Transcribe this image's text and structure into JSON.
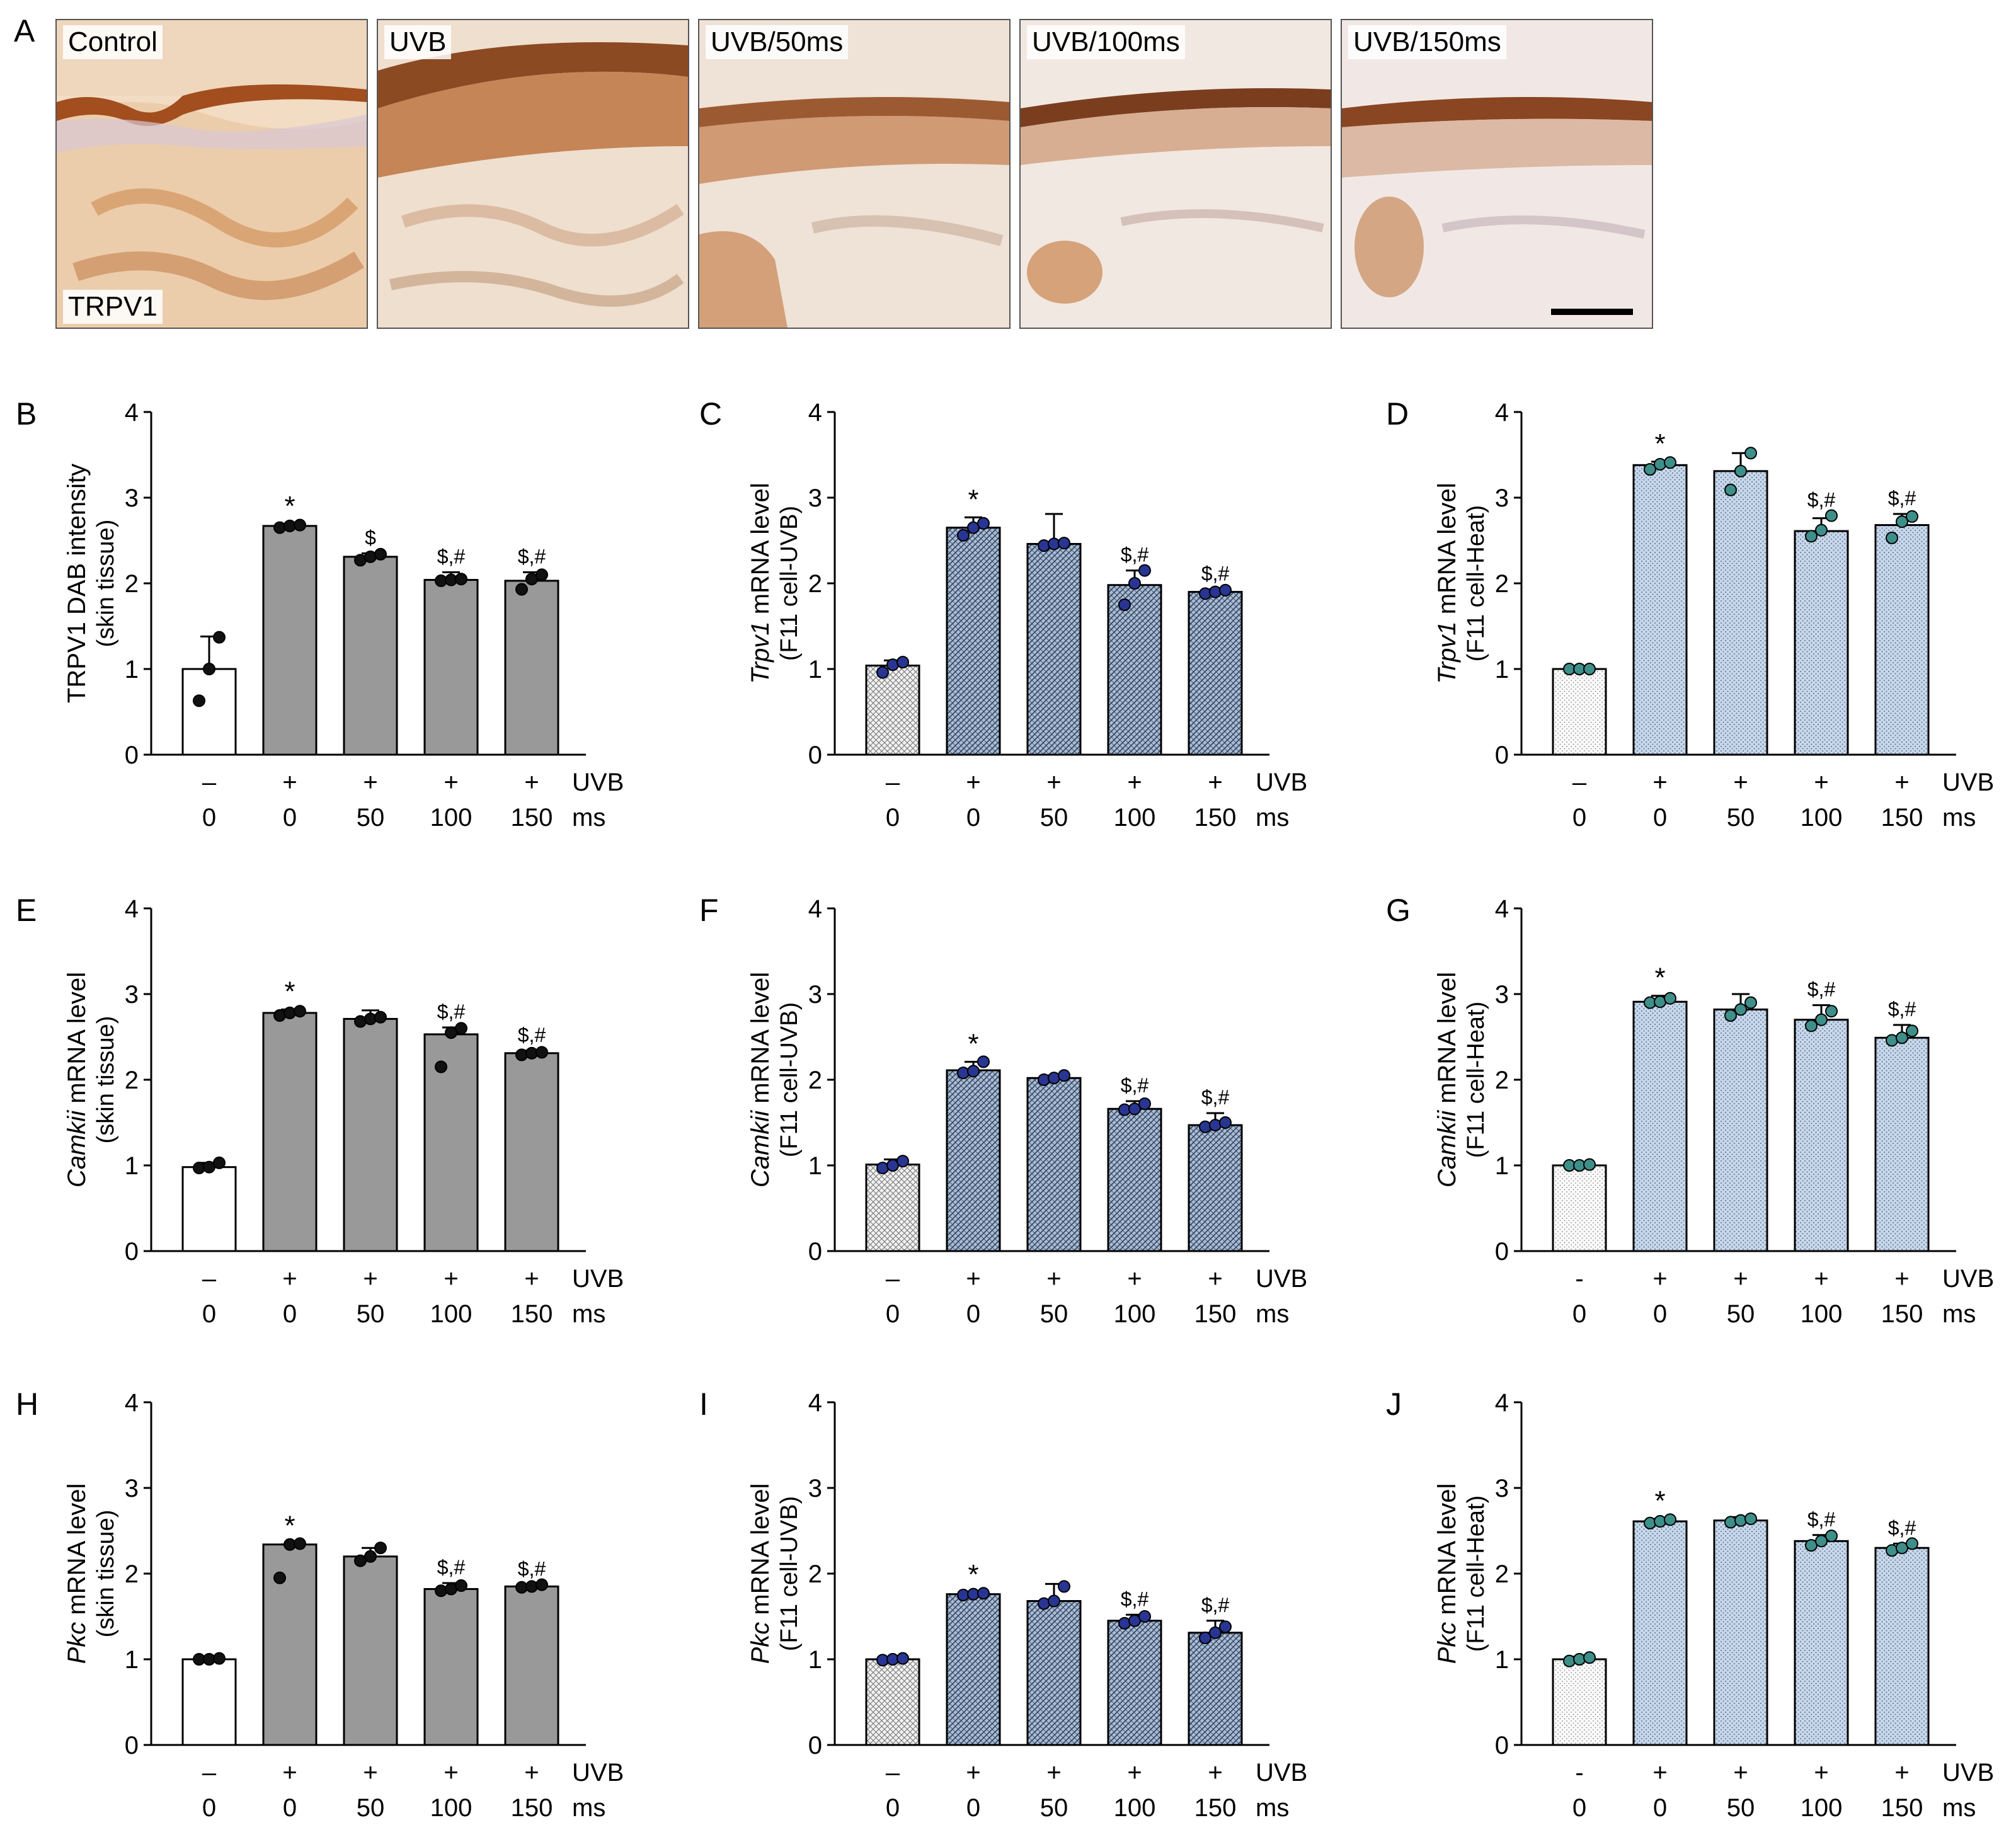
{
  "panel_a": {
    "letter": "A",
    "images": [
      {
        "label": "Control",
        "stain": "TRPV1"
      },
      {
        "label": "UVB"
      },
      {
        "label": "UVB/50ms"
      },
      {
        "label": "UVB/100ms"
      },
      {
        "label": "UVB/150ms"
      }
    ]
  },
  "colors": {
    "skin_fill": "#999999",
    "control_fill": "#ffffff",
    "uvb_fill": "#a9bdd6",
    "uvb_hatch": "#2f3f58",
    "heat_fill": "#c7d8ec",
    "heat_dots": "#6f7f95",
    "uvb_point": "#283593",
    "heat_point": "#3e8f8a",
    "skin_point": "#111111"
  },
  "chart_data": [
    {
      "panel": "B",
      "type": "bar",
      "ylabel": "TRPV1 DAB intensity",
      "ylabel_italic": "",
      "ylabel_rest": "",
      "sublabel": "(skin tissue)",
      "style": "skin",
      "ylim": [
        0,
        4
      ],
      "yticks": [
        "0",
        "1",
        "2",
        "3",
        "4"
      ],
      "uvb_row": [
        "–",
        "+",
        "+",
        "+",
        "+"
      ],
      "ms_row": [
        "0",
        "0",
        "50",
        "100",
        "150"
      ],
      "row1_label": "UVB",
      "row2_label": "ms",
      "values": [
        1.0,
        2.67,
        2.31,
        2.04,
        2.03
      ],
      "errors": [
        0.38,
        0.02,
        0.04,
        0.09,
        0.1
      ],
      "points": [
        [
          0.63,
          1.0,
          1.37
        ],
        [
          2.65,
          2.67,
          2.68
        ],
        [
          2.27,
          2.31,
          2.34
        ],
        [
          2.03,
          2.04,
          2.05
        ],
        [
          1.93,
          2.05,
          2.1
        ]
      ],
      "annotations": [
        "",
        "*",
        "$",
        "$,#",
        "$,#"
      ]
    },
    {
      "panel": "C",
      "type": "bar",
      "ylabel": "",
      "ylabel_italic": "Trpv1",
      "ylabel_rest": " mRNA level",
      "sublabel": "(F11 cell-UVB)",
      "style": "uvb",
      "ylim": [
        0,
        4
      ],
      "yticks": [
        "0",
        "1",
        "2",
        "3",
        "4"
      ],
      "uvb_row": [
        "–",
        "+",
        "+",
        "+",
        "+"
      ],
      "ms_row": [
        "0",
        "0",
        "50",
        "100",
        "150"
      ],
      "row1_label": "UVB",
      "row2_label": "ms",
      "values": [
        1.04,
        2.65,
        2.46,
        1.98,
        1.9
      ],
      "errors": [
        0.06,
        0.12,
        0.35,
        0.17,
        0.03
      ],
      "points": [
        [
          0.96,
          1.05,
          1.08
        ],
        [
          2.56,
          2.65,
          2.7
        ],
        [
          2.44,
          2.46,
          2.47
        ],
        [
          1.75,
          2.0,
          2.15
        ],
        [
          1.88,
          1.9,
          1.92
        ]
      ],
      "annotations": [
        "",
        "*",
        "",
        "$,#",
        "$,#"
      ]
    },
    {
      "panel": "D",
      "type": "bar",
      "ylabel": "",
      "ylabel_italic": "Trpv1",
      "ylabel_rest": " mRNA level",
      "sublabel": "(F11 cell-Heat)",
      "style": "heat",
      "ylim": [
        0,
        4
      ],
      "yticks": [
        "0",
        "1",
        "2",
        "3",
        "4"
      ],
      "uvb_row": [
        "–",
        "+",
        "+",
        "+",
        "+"
      ],
      "ms_row": [
        "0",
        "0",
        "50",
        "100",
        "150"
      ],
      "row1_label": "UVB",
      "row2_label": "ms",
      "values": [
        1.0,
        3.38,
        3.31,
        2.61,
        2.68
      ],
      "errors": [
        0.01,
        0.04,
        0.21,
        0.15,
        0.13
      ],
      "points": [
        [
          1.0,
          1.0,
          1.0
        ],
        [
          3.33,
          3.39,
          3.41
        ],
        [
          3.09,
          3.31,
          3.52
        ],
        [
          2.55,
          2.62,
          2.79
        ],
        [
          2.53,
          2.72,
          2.78
        ]
      ],
      "annotations": [
        "",
        "*",
        "",
        "$,#",
        "$,#"
      ]
    },
    {
      "panel": "E",
      "type": "bar",
      "ylabel": "",
      "ylabel_italic": "Camkii",
      "ylabel_rest": " mRNA level",
      "sublabel": "(skin tissue)",
      "style": "skin",
      "ylim": [
        0,
        4
      ],
      "yticks": [
        "0",
        "1",
        "2",
        "3",
        "4"
      ],
      "uvb_row": [
        "–",
        "+",
        "+",
        "+",
        "+"
      ],
      "ms_row": [
        "0",
        "0",
        "50",
        "100",
        "150"
      ],
      "row1_label": "UVB",
      "row2_label": "ms",
      "values": [
        0.98,
        2.78,
        2.71,
        2.53,
        2.31
      ],
      "errors": [
        0.05,
        0.04,
        0.1,
        0.08,
        0.03
      ],
      "points": [
        [
          0.97,
          0.98,
          1.03
        ],
        [
          2.75,
          2.78,
          2.8
        ],
        [
          2.68,
          2.71,
          2.73
        ],
        [
          2.15,
          2.55,
          2.6
        ],
        [
          2.29,
          2.31,
          2.32
        ]
      ],
      "annotations": [
        "",
        "*",
        "",
        "$,#",
        "$,#"
      ]
    },
    {
      "panel": "F",
      "type": "bar",
      "ylabel": "",
      "ylabel_italic": "Camkii",
      "ylabel_rest": " mRNA level",
      "sublabel": "(F11 cell-UVB)",
      "style": "uvb",
      "ylim": [
        0,
        4
      ],
      "yticks": [
        "0",
        "1",
        "2",
        "3",
        "4"
      ],
      "uvb_row": [
        "–",
        "+",
        "+",
        "+",
        "+"
      ],
      "ms_row": [
        "0",
        "0",
        "50",
        "100",
        "150"
      ],
      "row1_label": "UVB",
      "row2_label": "ms",
      "values": [
        1.01,
        2.11,
        2.02,
        1.66,
        1.47
      ],
      "errors": [
        0.06,
        0.1,
        0.03,
        0.09,
        0.14
      ],
      "points": [
        [
          0.97,
          1.0,
          1.05
        ],
        [
          2.08,
          2.1,
          2.21
        ],
        [
          2.0,
          2.02,
          2.05
        ],
        [
          1.65,
          1.66,
          1.72
        ],
        [
          1.45,
          1.47,
          1.5
        ]
      ],
      "annotations": [
        "",
        "*",
        "",
        "$,#",
        "$,#"
      ]
    },
    {
      "panel": "G",
      "type": "bar",
      "ylabel": "",
      "ylabel_italic": "Camkii",
      "ylabel_rest": " mRNA level",
      "sublabel": "(F11 cell-Heat)",
      "style": "heat",
      "ylim": [
        0,
        4
      ],
      "yticks": [
        "0",
        "1",
        "2",
        "3",
        "4"
      ],
      "uvb_row": [
        "-",
        "+",
        "+",
        "+",
        "+"
      ],
      "ms_row": [
        "0",
        "0",
        "50",
        "100",
        "150"
      ],
      "row1_label": "UVB",
      "row2_label": "ms",
      "values": [
        1.0,
        2.91,
        2.82,
        2.7,
        2.49
      ],
      "errors": [
        0.02,
        0.07,
        0.18,
        0.17,
        0.15
      ],
      "points": [
        [
          1.0,
          1.0,
          1.01
        ],
        [
          2.9,
          2.91,
          2.95
        ],
        [
          2.75,
          2.82,
          2.9
        ],
        [
          2.63,
          2.7,
          2.8
        ],
        [
          2.46,
          2.49,
          2.57
        ]
      ],
      "annotations": [
        "",
        "*",
        "",
        "$,#",
        "$,#"
      ]
    },
    {
      "panel": "H",
      "type": "bar",
      "ylabel": "",
      "ylabel_italic": "Pkc",
      "ylabel_rest": " mRNA level",
      "sublabel": "(skin tissue)",
      "style": "skin",
      "ylim": [
        0,
        4
      ],
      "yticks": [
        "0",
        "1",
        "2",
        "3",
        "4"
      ],
      "uvb_row": [
        "–",
        "+",
        "+",
        "+",
        "+"
      ],
      "ms_row": [
        "0",
        "0",
        "50",
        "100",
        "150"
      ],
      "row1_label": "UVB",
      "row2_label": "ms",
      "values": [
        1.0,
        2.34,
        2.2,
        1.82,
        1.85
      ],
      "errors": [
        0.01,
        0.0,
        0.1,
        0.07,
        0.02
      ],
      "points": [
        [
          1.0,
          1.0,
          1.01
        ],
        [
          1.95,
          2.34,
          2.35
        ],
        [
          2.15,
          2.2,
          2.3
        ],
        [
          1.8,
          1.82,
          1.86
        ],
        [
          1.84,
          1.85,
          1.87
        ]
      ],
      "annotations": [
        "",
        "*",
        "",
        "$,#",
        "$,#"
      ]
    },
    {
      "panel": "I",
      "type": "bar",
      "ylabel": "",
      "ylabel_italic": "Pkc",
      "ylabel_rest": " mRNA level",
      "sublabel": "(F11 cell-UVB)",
      "style": "uvb",
      "ylim": [
        0,
        4
      ],
      "yticks": [
        "0",
        "1",
        "2",
        "3",
        "4"
      ],
      "uvb_row": [
        "–",
        "+",
        "+",
        "+",
        "+"
      ],
      "ms_row": [
        "0",
        "0",
        "50",
        "100",
        "150"
      ],
      "row1_label": "UVB",
      "row2_label": "ms",
      "values": [
        1.0,
        1.76,
        1.68,
        1.45,
        1.31
      ],
      "errors": [
        0.02,
        0.02,
        0.2,
        0.07,
        0.14
      ],
      "points": [
        [
          0.99,
          1.0,
          1.01
        ],
        [
          1.75,
          1.76,
          1.77
        ],
        [
          1.65,
          1.68,
          1.85
        ],
        [
          1.42,
          1.45,
          1.5
        ],
        [
          1.25,
          1.31,
          1.38
        ]
      ],
      "annotations": [
        "",
        "*",
        "",
        "$,#",
        "$,#"
      ]
    },
    {
      "panel": "J",
      "type": "bar",
      "ylabel": "",
      "ylabel_italic": "Pkc",
      "ylabel_rest": " mRNA level",
      "sublabel": "(F11 cell-Heat)",
      "style": "heat",
      "ylim": [
        0,
        4
      ],
      "yticks": [
        "0",
        "1",
        "2",
        "3",
        "4"
      ],
      "uvb_row": [
        "-",
        "+",
        "+",
        "+",
        "+"
      ],
      "ms_row": [
        "0",
        "0",
        "50",
        "100",
        "150"
      ],
      "row1_label": "UVB",
      "row2_label": "ms",
      "values": [
        1.0,
        2.61,
        2.62,
        2.38,
        2.3
      ],
      "errors": [
        0.03,
        0.03,
        0.04,
        0.07,
        0.05
      ],
      "points": [
        [
          0.98,
          1.0,
          1.02
        ],
        [
          2.59,
          2.61,
          2.63
        ],
        [
          2.6,
          2.62,
          2.64
        ],
        [
          2.33,
          2.38,
          2.44
        ],
        [
          2.27,
          2.3,
          2.35
        ]
      ],
      "annotations": [
        "",
        "*",
        "",
        "$,#",
        "$,#"
      ]
    }
  ]
}
